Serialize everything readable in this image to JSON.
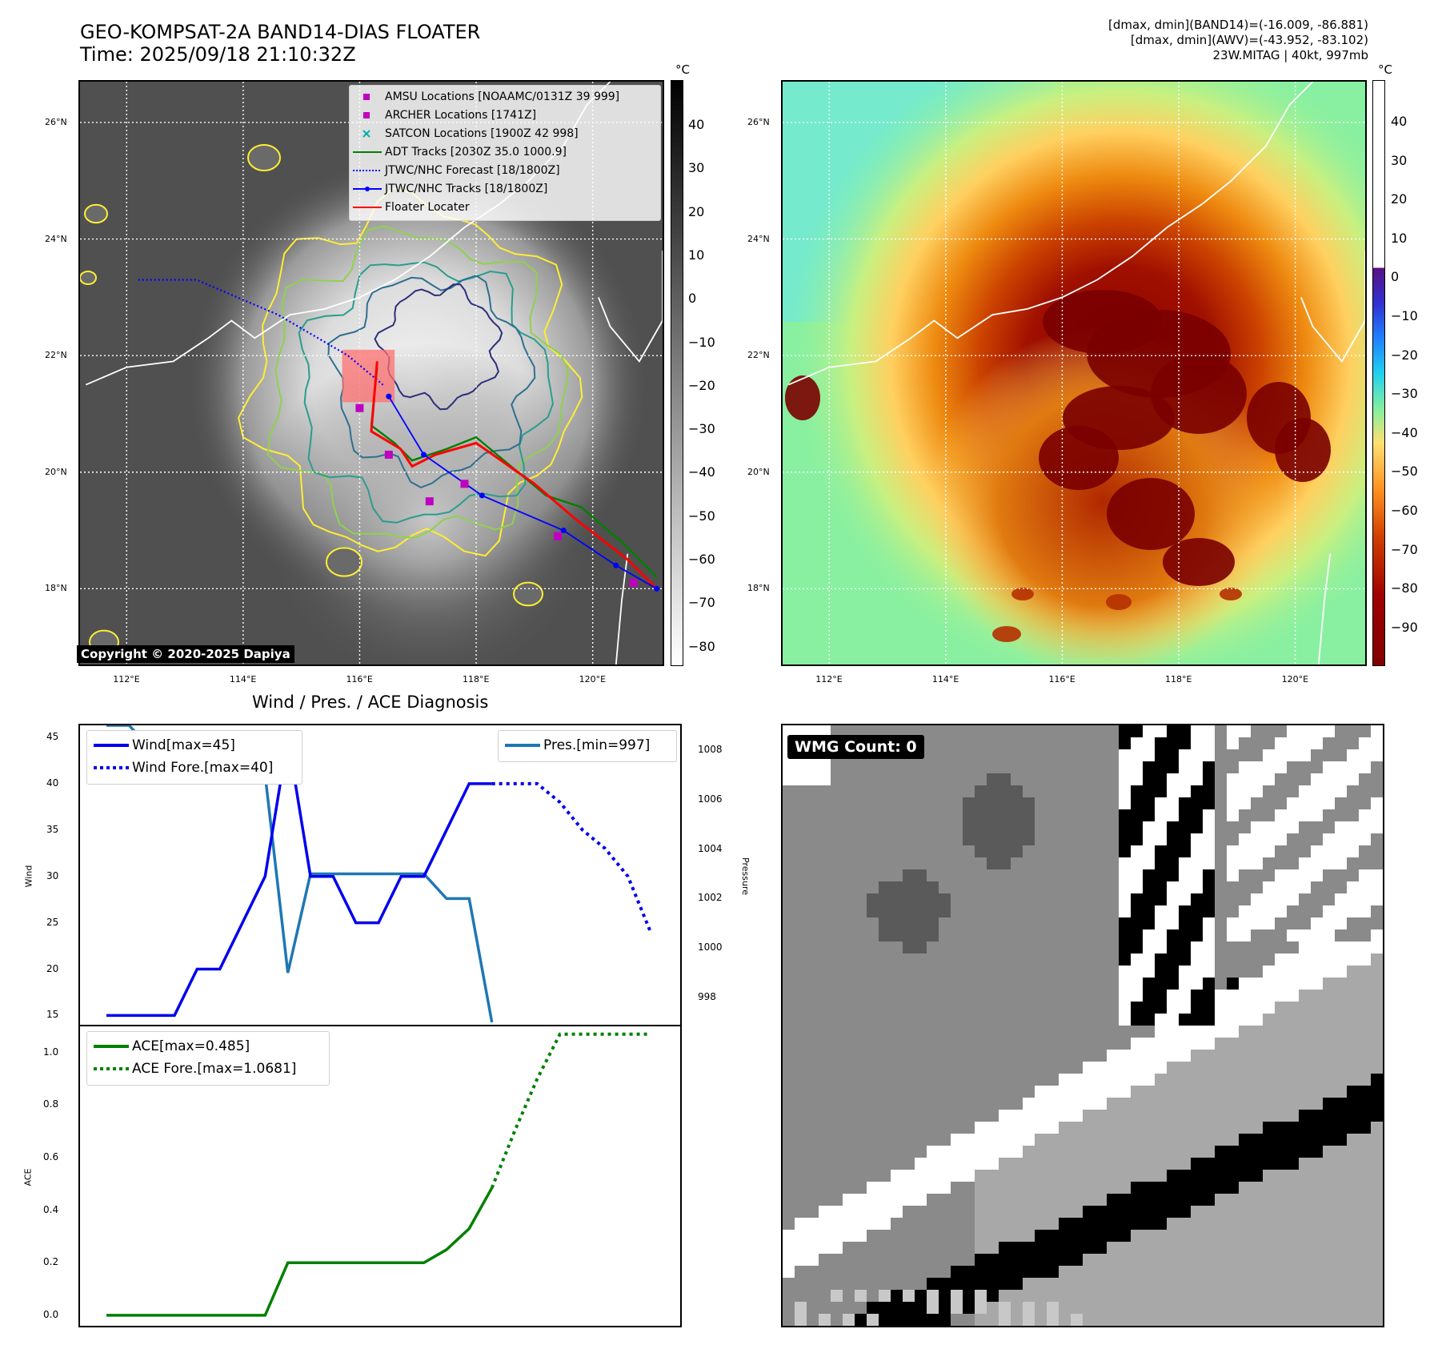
{
  "header": {
    "title_line1": "GEO-KOMPSAT-2A BAND14-DIAS FLOATER",
    "title_line2": "Time: 2025/09/18 21:10:32Z",
    "info_line1": "[dmax, dmin](BAND14)=(-16.009, -86.881)",
    "info_line2": "[dmax, dmin](AWV)=(-43.952, -83.102)",
    "info_line3": "23W.MITAG | 40kt, 997mb"
  },
  "maps": {
    "lat_labels": [
      "26°N",
      "24°N",
      "22°N",
      "20°N",
      "18°N"
    ],
    "lon_labels": [
      "112°E",
      "114°E",
      "116°E",
      "118°E",
      "120°E"
    ],
    "lat_values": [
      26,
      24,
      22,
      20,
      18
    ],
    "lon_values": [
      112,
      114,
      116,
      118,
      120
    ],
    "extent": {
      "lon_min": 111.2,
      "lon_max": 121.2,
      "lat_min": 16.7,
      "lat_max": 26.7
    },
    "unit": "°C",
    "left_colorbar_ticks": [
      "40",
      "30",
      "20",
      "10",
      "0",
      "−10",
      "−20",
      "−30",
      "−40",
      "−50",
      "−60",
      "−70",
      "−80"
    ],
    "right_colorbar_ticks": [
      "40",
      "30",
      "20",
      "10",
      "0",
      "−10",
      "−20",
      "−30",
      "−40",
      "−50",
      "−60",
      "−70",
      "−80",
      "−90"
    ],
    "copyright": "Copyright © 2020-2025 Dapiya",
    "legend": [
      {
        "label": "AMSU Locations [NOAAMC/0131Z 39 999]",
        "color": "#c000c0",
        "marker": "square"
      },
      {
        "label": "ARCHER Locations [1741Z]",
        "color": "#c000c0",
        "marker": "square"
      },
      {
        "label": "SATCON Locations [1900Z 42 998]",
        "color": "#00b0b0",
        "marker": "x"
      },
      {
        "label": "ADT Tracks [2030Z 35.0 1000.9]",
        "color": "#008000",
        "marker": "line"
      },
      {
        "label": "JTWC/NHC Forecast [18/1800Z]",
        "color": "#0000ff",
        "marker": "dotted"
      },
      {
        "label": "JTWC/NHC Tracks [18/1800Z]",
        "color": "#0000ff",
        "marker": "line-dot"
      },
      {
        "label": "Floater Locater",
        "color": "#ff0000",
        "marker": "line"
      }
    ],
    "jtwc_track": [
      [
        116.5,
        21.3
      ],
      [
        117.1,
        20.3
      ],
      [
        118.1,
        19.6
      ],
      [
        119.5,
        19.0
      ],
      [
        120.4,
        18.4
      ],
      [
        121.1,
        18.0
      ]
    ],
    "jtwc_forecast": [
      [
        112.2,
        23.3
      ],
      [
        113.2,
        23.3
      ],
      [
        114.6,
        22.7
      ],
      [
        115.8,
        22.0
      ],
      [
        116.4,
        21.5
      ]
    ],
    "adt_track": [
      [
        116.3,
        21.8
      ],
      [
        116.2,
        20.8
      ],
      [
        116.6,
        20.5
      ],
      [
        116.9,
        20.2
      ],
      [
        117.5,
        20.4
      ],
      [
        118.0,
        20.6
      ],
      [
        118.6,
        20.1
      ],
      [
        119.2,
        19.6
      ],
      [
        119.8,
        19.4
      ],
      [
        120.5,
        18.8
      ],
      [
        121.1,
        18.2
      ]
    ],
    "floater_track": [
      [
        116.3,
        21.9
      ],
      [
        116.2,
        20.7
      ],
      [
        116.7,
        20.4
      ],
      [
        116.9,
        20.1
      ],
      [
        117.3,
        20.3
      ],
      [
        118.0,
        20.5
      ],
      [
        119.0,
        19.8
      ],
      [
        119.7,
        19.2
      ],
      [
        120.6,
        18.5
      ],
      [
        121.1,
        18.0
      ]
    ],
    "amsu_points": [
      [
        116.0,
        21.1
      ],
      [
        116.5,
        20.3
      ],
      [
        117.8,
        19.8
      ],
      [
        117.2,
        19.5
      ],
      [
        119.4,
        18.9
      ],
      [
        120.7,
        18.1
      ]
    ],
    "box": {
      "lon_min": 115.7,
      "lon_max": 116.6,
      "lat_min": 21.2,
      "lat_max": 22.1
    },
    "coast_color": "#ffffff"
  },
  "diagnosis": {
    "title": "Wind / Pres. / ACE Diagnosis",
    "wind_ylabel": "Wind",
    "pres_ylabel": "Pressure",
    "ace_ylabel": "ACE",
    "wind_legend": [
      "Wind[max=45]",
      "Wind Fore.[max=40]"
    ],
    "pres_legend": "Pres.[min=997]",
    "ace_legend": [
      "ACE[max=0.485]",
      "ACE Fore.[max=1.0681]"
    ],
    "wind_ticks": [
      "45",
      "40",
      "35",
      "30",
      "25",
      "20",
      "15"
    ],
    "pres_ticks": [
      "1008",
      "1006",
      "1004",
      "1002",
      "1000",
      "998"
    ],
    "ace_ticks": [
      "1.0",
      "0.8",
      "0.6",
      "0.4",
      "0.2",
      "0.0"
    ],
    "colors": {
      "wind": "#0000ee",
      "pres": "#1f77b4",
      "ace": "#008000"
    }
  },
  "chart_data": [
    {
      "type": "line",
      "title": "Wind / Pres. / ACE Diagnosis",
      "ylabel": "Wind",
      "ylim": [
        14,
        46.3
      ],
      "x": [
        0,
        1,
        2,
        3,
        4,
        5,
        6,
        7,
        8,
        9,
        10,
        11,
        12,
        13,
        14,
        15,
        16,
        17,
        18,
        19,
        20,
        21,
        22,
        23,
        24
      ],
      "series": [
        {
          "name": "Wind[max=45]",
          "x": [
            0,
            1,
            2,
            3,
            4,
            5,
            6,
            7,
            8,
            9,
            10,
            11,
            12,
            13,
            14,
            15,
            16,
            17
          ],
          "values": [
            15,
            15,
            15,
            15,
            20,
            20,
            25,
            30,
            45,
            30,
            30,
            25,
            25,
            30,
            30,
            35,
            40,
            40
          ]
        },
        {
          "name": "Wind Fore.[max=40]",
          "x": [
            17,
            18,
            19,
            20,
            21,
            22,
            23,
            24
          ],
          "values": [
            40,
            40,
            40,
            38,
            35,
            33,
            30,
            24
          ]
        }
      ]
    },
    {
      "type": "line",
      "ylabel": "Pressure",
      "ylim": [
        996.9,
        1009.0
      ],
      "series": [
        {
          "name": "Pres.[min=997]",
          "x": [
            0,
            1,
            2,
            3,
            4,
            5,
            6,
            7,
            8,
            9,
            10,
            11,
            12,
            13,
            14,
            15,
            16,
            17
          ],
          "values": [
            1009,
            1009,
            1008,
            1008,
            1008,
            1008,
            1008,
            1007,
            999,
            1003,
            1003,
            1003,
            1003,
            1003,
            1003,
            1002,
            1002,
            997
          ]
        }
      ]
    },
    {
      "type": "line",
      "ylabel": "ACE",
      "ylim": [
        -0.04,
        1.1
      ],
      "series": [
        {
          "name": "ACE[max=0.485]",
          "x": [
            0,
            1,
            2,
            3,
            4,
            5,
            6,
            7,
            8,
            9,
            10,
            11,
            12,
            13,
            14,
            15,
            16,
            17
          ],
          "values": [
            0,
            0,
            0,
            0,
            0,
            0,
            0,
            0,
            0.2,
            0.2,
            0.2,
            0.2,
            0.2,
            0.2,
            0.2,
            0.25,
            0.33,
            0.485
          ]
        },
        {
          "name": "ACE Fore.[max=1.0681]",
          "x": [
            17,
            18,
            19,
            20,
            21,
            22,
            23,
            24
          ],
          "values": [
            0.485,
            0.7,
            0.9,
            1.07,
            1.07,
            1.07,
            1.07,
            1.07
          ]
        }
      ]
    }
  ],
  "wmg": {
    "label": "WMG Count: 0"
  }
}
